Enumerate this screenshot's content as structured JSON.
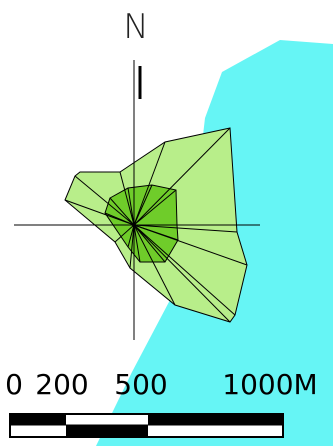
{
  "north_label": "N",
  "scale": {
    "labels": [
      "0",
      "200",
      "500",
      "1000M"
    ]
  },
  "colors": {
    "water": "#66f5f5",
    "outer_zone": "#b8ee8a",
    "inner_zone": "#6fcc2a",
    "lines": "#000000",
    "background": "#ffffff"
  }
}
